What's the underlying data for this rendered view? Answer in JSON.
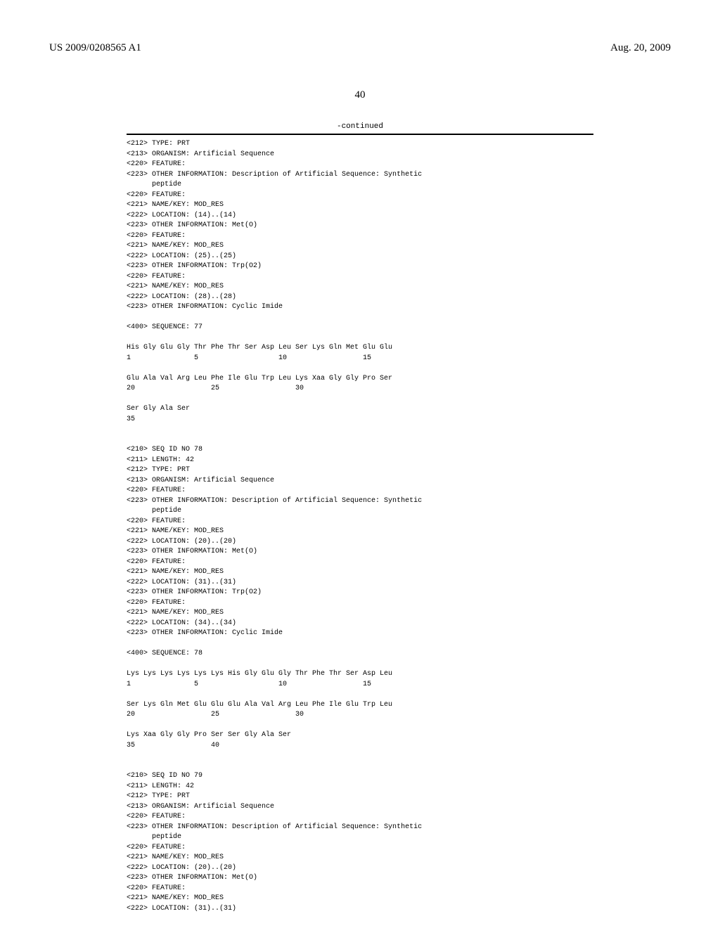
{
  "header": {
    "patent_number": "US 2009/0208565 A1",
    "date": "Aug. 20, 2009"
  },
  "page_number": "40",
  "continued_label": "-continued",
  "sequence_listing": "<212> TYPE: PRT\n<213> ORGANISM: Artificial Sequence\n<220> FEATURE:\n<223> OTHER INFORMATION: Description of Artificial Sequence: Synthetic\n      peptide\n<220> FEATURE:\n<221> NAME/KEY: MOD_RES\n<222> LOCATION: (14)..(14)\n<223> OTHER INFORMATION: Met(O)\n<220> FEATURE:\n<221> NAME/KEY: MOD_RES\n<222> LOCATION: (25)..(25)\n<223> OTHER INFORMATION: Trp(O2)\n<220> FEATURE:\n<221> NAME/KEY: MOD_RES\n<222> LOCATION: (28)..(28)\n<223> OTHER INFORMATION: Cyclic Imide\n\n<400> SEQUENCE: 77\n\nHis Gly Glu Gly Thr Phe Thr Ser Asp Leu Ser Lys Gln Met Glu Glu\n1               5                   10                  15\n\nGlu Ala Val Arg Leu Phe Ile Glu Trp Leu Lys Xaa Gly Gly Pro Ser\n20                  25                  30\n\nSer Gly Ala Ser\n35\n\n\n<210> SEQ ID NO 78\n<211> LENGTH: 42\n<212> TYPE: PRT\n<213> ORGANISM: Artificial Sequence\n<220> FEATURE:\n<223> OTHER INFORMATION: Description of Artificial Sequence: Synthetic\n      peptide\n<220> FEATURE:\n<221> NAME/KEY: MOD_RES\n<222> LOCATION: (20)..(20)\n<223> OTHER INFORMATION: Met(O)\n<220> FEATURE:\n<221> NAME/KEY: MOD_RES\n<222> LOCATION: (31)..(31)\n<223> OTHER INFORMATION: Trp(O2)\n<220> FEATURE:\n<221> NAME/KEY: MOD_RES\n<222> LOCATION: (34)..(34)\n<223> OTHER INFORMATION: Cyclic Imide\n\n<400> SEQUENCE: 78\n\nLys Lys Lys Lys Lys Lys His Gly Glu Gly Thr Phe Thr Ser Asp Leu\n1               5                   10                  15\n\nSer Lys Gln Met Glu Glu Glu Ala Val Arg Leu Phe Ile Glu Trp Leu\n20                  25                  30\n\nLys Xaa Gly Gly Pro Ser Ser Gly Ala Ser\n35                  40\n\n\n<210> SEQ ID NO 79\n<211> LENGTH: 42\n<212> TYPE: PRT\n<213> ORGANISM: Artificial Sequence\n<220> FEATURE:\n<223> OTHER INFORMATION: Description of Artificial Sequence: Synthetic\n      peptide\n<220> FEATURE:\n<221> NAME/KEY: MOD_RES\n<222> LOCATION: (20)..(20)\n<223> OTHER INFORMATION: Met(O)\n<220> FEATURE:\n<221> NAME/KEY: MOD_RES\n<222> LOCATION: (31)..(31)"
}
